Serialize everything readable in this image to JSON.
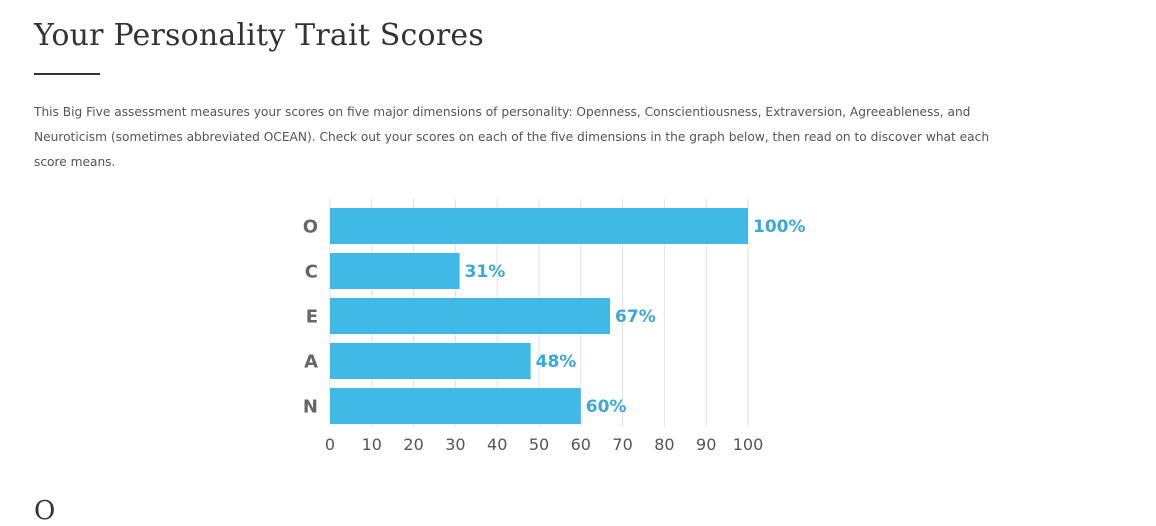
{
  "page": {
    "title": "Your Personality Trait Scores",
    "intro": "This Big Five assessment measures your scores on five major dimensions of personality: Openness, Conscientiousness, Extraversion, Agreeableness, and Neuroticism (sometimes abbreviated OCEAN). Check out your scores on each of the five dimensions in the graph below, then read on to discover what each score means.",
    "next_heading": "O"
  },
  "chart_data": {
    "type": "bar",
    "orientation": "horizontal",
    "categories": [
      "O",
      "C",
      "E",
      "A",
      "N"
    ],
    "values": [
      100,
      31,
      67,
      48,
      60
    ],
    "value_labels": [
      "100%",
      "31%",
      "67%",
      "48%",
      "60%"
    ],
    "xlim": [
      0,
      100
    ],
    "xticks": [
      0,
      10,
      20,
      30,
      40,
      50,
      60,
      70,
      80,
      90,
      100
    ],
    "xtick_labels": [
      "0",
      "10",
      "20",
      "30",
      "40",
      "50",
      "60",
      "70",
      "80",
      "90",
      "100"
    ],
    "grid": true,
    "legend": "none",
    "colors": {
      "bar": "#36b5e5",
      "value_label": "#3aa9d8",
      "grid": "#e2e2e2",
      "category_label": "#666666",
      "tick_label": "#555555"
    }
  }
}
